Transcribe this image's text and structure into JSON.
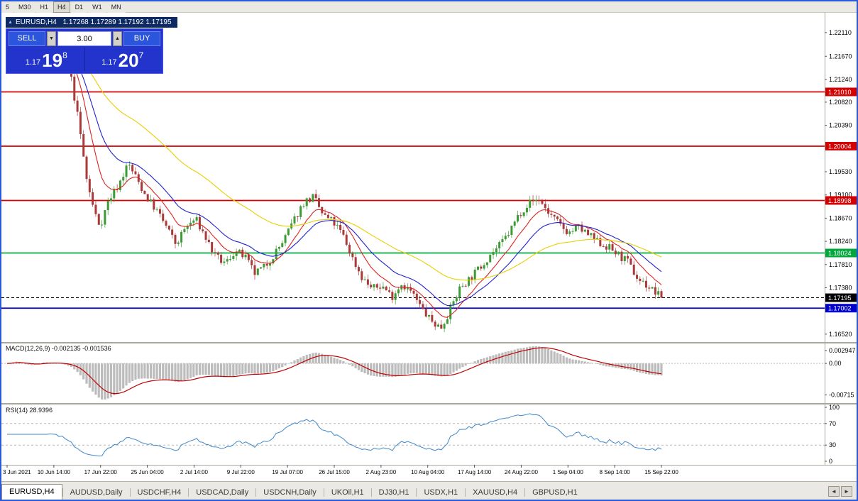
{
  "toolbar": {
    "timeframes": [
      {
        "label": "5",
        "active": false
      },
      {
        "label": "M30",
        "active": false
      },
      {
        "label": "H1",
        "active": false
      },
      {
        "label": "H4",
        "active": true
      },
      {
        "label": "D1",
        "active": false
      },
      {
        "label": "W1",
        "active": false
      },
      {
        "label": "MN",
        "active": false
      }
    ]
  },
  "chart": {
    "title": "EURUSD,H4",
    "ohlc": "1.17268 1.17289 1.17192 1.17195",
    "collapse_icon": "▲"
  },
  "trade_panel": {
    "sell_label": "SELL",
    "buy_label": "BUY",
    "volume": "3.00",
    "vol_down_icon": "▼",
    "vol_up_icon": "▲",
    "sell_price_prefix": "1.17",
    "sell_price_big": "19",
    "sell_price_sup": "8",
    "buy_price_prefix": "1.17",
    "buy_price_big": "20",
    "buy_price_sup": "7"
  },
  "price_axis": {
    "labels": [
      "1.22110",
      "1.21670",
      "1.21240",
      "1.20820",
      "1.20390",
      "1.19530",
      "1.19100",
      "1.18670",
      "1.18240",
      "1.17810",
      "1.17380",
      "1.16520"
    ]
  },
  "levels": [
    {
      "value": "1.21010",
      "price": 1.2101,
      "color": "#d40000",
      "type": "resistance",
      "style": "solid"
    },
    {
      "value": "1.20004",
      "price": 1.20004,
      "color": "#d40000",
      "type": "resistance",
      "style": "solid"
    },
    {
      "value": "1.18998",
      "price": 1.18998,
      "color": "#d40000",
      "type": "resistance",
      "style": "solid"
    },
    {
      "value": "1.18024",
      "price": 1.18024,
      "color": "#00a83c",
      "type": "support",
      "style": "solid"
    },
    {
      "value": "1.17195",
      "price": 1.17195,
      "color": "#000000",
      "type": "current-price",
      "style": "dashed"
    },
    {
      "value": "1.17002",
      "price": 1.17002,
      "color": "#0000cc",
      "type": "support",
      "style": "solid"
    }
  ],
  "macd": {
    "label": "MACD(12,26,9)",
    "values": "-0.002135 -0.001536",
    "axis": [
      "0.002947",
      "0.00",
      "-0.00715"
    ]
  },
  "rsi": {
    "label": "RSI(14)",
    "value": "28.9396",
    "axis": [
      "100",
      "70",
      "30",
      "0"
    ]
  },
  "time_axis": [
    "3 Jun 2021",
    "10 Jun 14:00",
    "17 Jun 22:00",
    "25 Jun 04:00",
    "2 Jul 14:00",
    "9 Jul 22:00",
    "19 Jul 07:00",
    "26 Jul 15:00",
    "2 Aug 23:00",
    "10 Aug 04:00",
    "17 Aug 14:00",
    "24 Aug 22:00",
    "1 Sep 04:00",
    "8 Sep 14:00",
    "15 Sep 22:00"
  ],
  "tabs": [
    {
      "label": "EURUSD,H4",
      "active": true
    },
    {
      "label": "AUDUSD,Daily",
      "active": false
    },
    {
      "label": "USDCHF,H4",
      "active": false
    },
    {
      "label": "USDCAD,Daily",
      "active": false
    },
    {
      "label": "USDCNH,Daily",
      "active": false
    },
    {
      "label": "UKOil,H1",
      "active": false
    },
    {
      "label": "DJ30,H1",
      "active": false
    },
    {
      "label": "USDX,H1",
      "active": false
    },
    {
      "label": "XAUUSD,H4",
      "active": false
    },
    {
      "label": "GBPUSD,H1",
      "active": false
    }
  ],
  "tabs_nav": {
    "left": "◄",
    "right": "►"
  },
  "chart_data": {
    "type": "candlestick",
    "symbol": "EURUSD",
    "timeframe": "H4",
    "open": 1.17268,
    "high": 1.17289,
    "low": 1.17192,
    "close": 1.17195,
    "last_price": 1.17195,
    "ylim": [
      1.164,
      1.2245
    ],
    "candle_count": 215,
    "seed": 7,
    "noise": 0.0016,
    "wick": 0.0009,
    "up_color": "#3c9b35",
    "down_color": "#aa3939",
    "moving_averages": [
      {
        "period": 10,
        "color": "#dd2222"
      },
      {
        "period": 21,
        "color": "#2222cc"
      },
      {
        "period": 55,
        "color": "#e8cf00"
      }
    ],
    "macd_params": [
      12,
      26,
      9
    ],
    "macd_hist_color": "#bcbcbc",
    "macd_signal_color": "#c00000",
    "rsi_period": 14,
    "rsi_color": "#3f87c9",
    "rsi_levels": [
      70,
      30
    ],
    "price_path": [
      [
        0.0,
        1.2185
      ],
      [
        0.012,
        1.2205
      ],
      [
        0.025,
        1.215
      ],
      [
        0.04,
        1.2165
      ],
      [
        0.055,
        1.22
      ],
      [
        0.07,
        1.218
      ],
      [
        0.085,
        1.216
      ],
      [
        0.098,
        1.2125
      ],
      [
        0.11,
        1.204
      ],
      [
        0.122,
        1.1935
      ],
      [
        0.133,
        1.188
      ],
      [
        0.142,
        1.1852
      ],
      [
        0.155,
        1.19
      ],
      [
        0.17,
        1.1928
      ],
      [
        0.185,
        1.1968
      ],
      [
        0.198,
        1.194
      ],
      [
        0.212,
        1.1908
      ],
      [
        0.228,
        1.1882
      ],
      [
        0.243,
        1.1852
      ],
      [
        0.258,
        1.1818
      ],
      [
        0.272,
        1.1848
      ],
      [
        0.288,
        1.1866
      ],
      [
        0.303,
        1.1832
      ],
      [
        0.318,
        1.1796
      ],
      [
        0.333,
        1.1782
      ],
      [
        0.348,
        1.1806
      ],
      [
        0.363,
        1.1796
      ],
      [
        0.378,
        1.1764
      ],
      [
        0.393,
        1.1776
      ],
      [
        0.408,
        1.18
      ],
      [
        0.423,
        1.1826
      ],
      [
        0.438,
        1.1862
      ],
      [
        0.453,
        1.1896
      ],
      [
        0.468,
        1.1906
      ],
      [
        0.483,
        1.1872
      ],
      [
        0.498,
        1.186
      ],
      [
        0.513,
        1.1836
      ],
      [
        0.528,
        1.1792
      ],
      [
        0.543,
        1.1756
      ],
      [
        0.558,
        1.1736
      ],
      [
        0.573,
        1.1742
      ],
      [
        0.588,
        1.1722
      ],
      [
        0.603,
        1.1746
      ],
      [
        0.618,
        1.173
      ],
      [
        0.633,
        1.17
      ],
      [
        0.648,
        1.1676
      ],
      [
        0.663,
        1.1664
      ],
      [
        0.678,
        1.17
      ],
      [
        0.693,
        1.174
      ],
      [
        0.708,
        1.1756
      ],
      [
        0.723,
        1.1776
      ],
      [
        0.738,
        1.18
      ],
      [
        0.753,
        1.1816
      ],
      [
        0.768,
        1.1842
      ],
      [
        0.783,
        1.1876
      ],
      [
        0.798,
        1.1896
      ],
      [
        0.813,
        1.1902
      ],
      [
        0.828,
        1.1876
      ],
      [
        0.843,
        1.1856
      ],
      [
        0.858,
        1.184
      ],
      [
        0.873,
        1.185
      ],
      [
        0.888,
        1.1836
      ],
      [
        0.903,
        1.1822
      ],
      [
        0.918,
        1.1814
      ],
      [
        0.933,
        1.18
      ],
      [
        0.948,
        1.1786
      ],
      [
        0.963,
        1.1756
      ],
      [
        0.978,
        1.1742
      ],
      [
        1.0,
        1.17195
      ]
    ]
  }
}
